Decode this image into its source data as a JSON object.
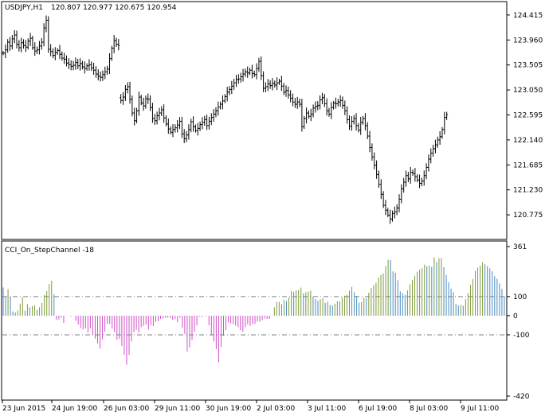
{
  "chart_data": [
    {
      "type": "bar",
      "subtype": "ohlc",
      "title": "USDJPY,H1",
      "ohlc_label": "120.807 120.977 120.675 120.954",
      "ylim": [
        120.4,
        124.5
      ],
      "y_ticks": [
        "124.415",
        "123.960",
        "123.505",
        "123.050",
        "122.595",
        "122.140",
        "121.685",
        "121.230",
        "120.775"
      ],
      "bar_color": "#000000",
      "gap_after_index": 51,
      "closes": [
        123.72,
        123.78,
        123.92,
        123.85,
        123.98,
        124.05,
        123.88,
        123.82,
        123.91,
        123.86,
        123.83,
        123.94,
        123.99,
        123.82,
        123.76,
        123.78,
        123.85,
        123.92,
        124.18,
        124.32,
        123.79,
        123.75,
        123.68,
        123.73,
        123.77,
        123.7,
        123.63,
        123.61,
        123.54,
        123.51,
        123.48,
        123.5,
        123.55,
        123.49,
        123.53,
        123.47,
        123.44,
        123.49,
        123.51,
        123.45,
        123.41,
        123.34,
        123.3,
        123.28,
        123.33,
        123.38,
        123.43,
        123.62,
        123.81,
        123.95,
        123.88,
        123.86,
        122.86,
        122.92,
        123.06,
        123.11,
        122.88,
        122.63,
        122.49,
        122.67,
        122.92,
        122.81,
        122.76,
        122.89,
        122.88,
        122.73,
        122.53,
        122.49,
        122.58,
        122.63,
        122.69,
        122.54,
        122.43,
        122.34,
        122.28,
        122.33,
        122.36,
        122.41,
        122.48,
        122.25,
        122.16,
        122.23,
        122.33,
        122.47,
        122.38,
        122.31,
        122.35,
        122.42,
        122.46,
        122.51,
        122.4,
        122.48,
        122.55,
        122.61,
        122.67,
        122.74,
        122.79,
        122.85,
        122.93,
        123.01,
        123.06,
        123.12,
        123.18,
        123.24,
        123.25,
        123.29,
        123.34,
        123.38,
        123.36,
        123.41,
        123.35,
        123.33,
        123.44,
        123.57,
        123.31,
        123.08,
        123.11,
        123.16,
        123.13,
        123.17,
        123.14,
        123.18,
        123.21,
        123.12,
        123.01,
        123.04,
        122.96,
        122.9,
        122.83,
        122.79,
        122.83,
        122.79,
        122.38,
        122.53,
        122.63,
        122.57,
        122.61,
        122.72,
        122.75,
        122.77,
        122.87,
        122.91,
        122.8,
        122.67,
        122.61,
        122.73,
        122.81,
        122.8,
        122.83,
        122.86,
        122.77,
        122.67,
        122.51,
        122.39,
        122.48,
        122.53,
        122.4,
        122.32,
        122.46,
        122.53,
        122.4,
        122.21,
        122.0,
        121.83,
        121.68,
        121.51,
        121.33,
        121.15,
        120.95,
        120.86,
        120.77,
        120.7,
        120.8,
        120.83,
        120.9,
        121.06,
        121.25,
        121.37,
        121.49,
        121.43,
        121.55,
        121.53,
        121.47,
        121.41,
        121.35,
        121.39,
        121.49,
        121.64,
        121.79,
        121.9,
        121.98,
        122.05,
        122.14,
        122.2,
        122.33,
        122.55,
        122.6
      ]
    },
    {
      "type": "bar",
      "title": "CCI_On_StepChannel -18",
      "ylim": [
        -420,
        361
      ],
      "y_ticks": [
        "361",
        "100",
        "0",
        "-100",
        "-420"
      ],
      "levels": [
        100,
        -100
      ],
      "level_color": "#808080",
      "colors": {
        "rising": "#7e9a3a",
        "steady": "#4a8cc0",
        "falling": "#d050c8"
      },
      "values": [
        147,
        96,
        139,
        100,
        22,
        17,
        27,
        63,
        95,
        26,
        60,
        44,
        51,
        54,
        31,
        44,
        66,
        108,
        128,
        166,
        183,
        111,
        -21,
        -20,
        -10,
        -38,
        -1,
        1,
        -4,
        -1,
        -26,
        -46,
        -63,
        -71,
        -66,
        -88,
        -65,
        -99,
        -120,
        -145,
        -172,
        -124,
        -83,
        -43,
        -43,
        -67,
        -86,
        -126,
        -121,
        -158,
        -205,
        -256,
        -205,
        -135,
        -85,
        -73,
        -88,
        -60,
        -53,
        -46,
        -73,
        -50,
        -55,
        -33,
        -29,
        -17,
        -14,
        -11,
        -10,
        -12,
        -21,
        -18,
        -34,
        -10,
        -62,
        -95,
        -188,
        -166,
        -127,
        -83,
        -51,
        -5,
        -7,
        -1,
        -2,
        -50,
        -103,
        -135,
        -174,
        -243,
        -163,
        -105,
        -75,
        -35,
        -41,
        -44,
        -51,
        -60,
        -75,
        -84,
        -60,
        -45,
        -53,
        -45,
        -42,
        -31,
        -31,
        -22,
        -15,
        -17,
        -17,
        -2,
        44,
        72,
        73,
        60,
        82,
        77,
        95,
        129,
        125,
        132,
        134,
        147,
        117,
        122,
        126,
        130,
        98,
        87,
        78,
        86,
        91,
        67,
        73,
        56,
        54,
        63,
        76,
        75,
        94,
        105,
        110,
        131,
        151,
        123,
        103,
        68,
        72,
        94,
        91,
        120,
        145,
        159,
        171,
        199,
        213,
        221,
        259,
        292,
        290,
        232,
        224,
        185,
        127,
        117,
        109,
        132,
        164,
        186,
        208,
        230,
        241,
        248,
        267,
        259,
        262,
        255,
        305,
        280,
        300,
        300,
        254,
        213,
        175,
        141,
        123,
        62,
        53,
        57,
        52,
        86,
        118,
        162,
        191,
        235,
        251,
        262,
        279,
        268,
        258,
        247,
        232,
        206,
        193,
        169,
        140,
        102
      ],
      "x_ticks": [
        "23 Jun 2015",
        "24 Jun 19:00",
        "26 Jun 03:00",
        "29 Jun 11:00",
        "30 Jun 19:00",
        "2 Jul 03:00",
        "3 Jul 11:00",
        "6 Jul 19:00",
        "8 Jul 03:00",
        "9 Jul 11:00"
      ]
    }
  ]
}
